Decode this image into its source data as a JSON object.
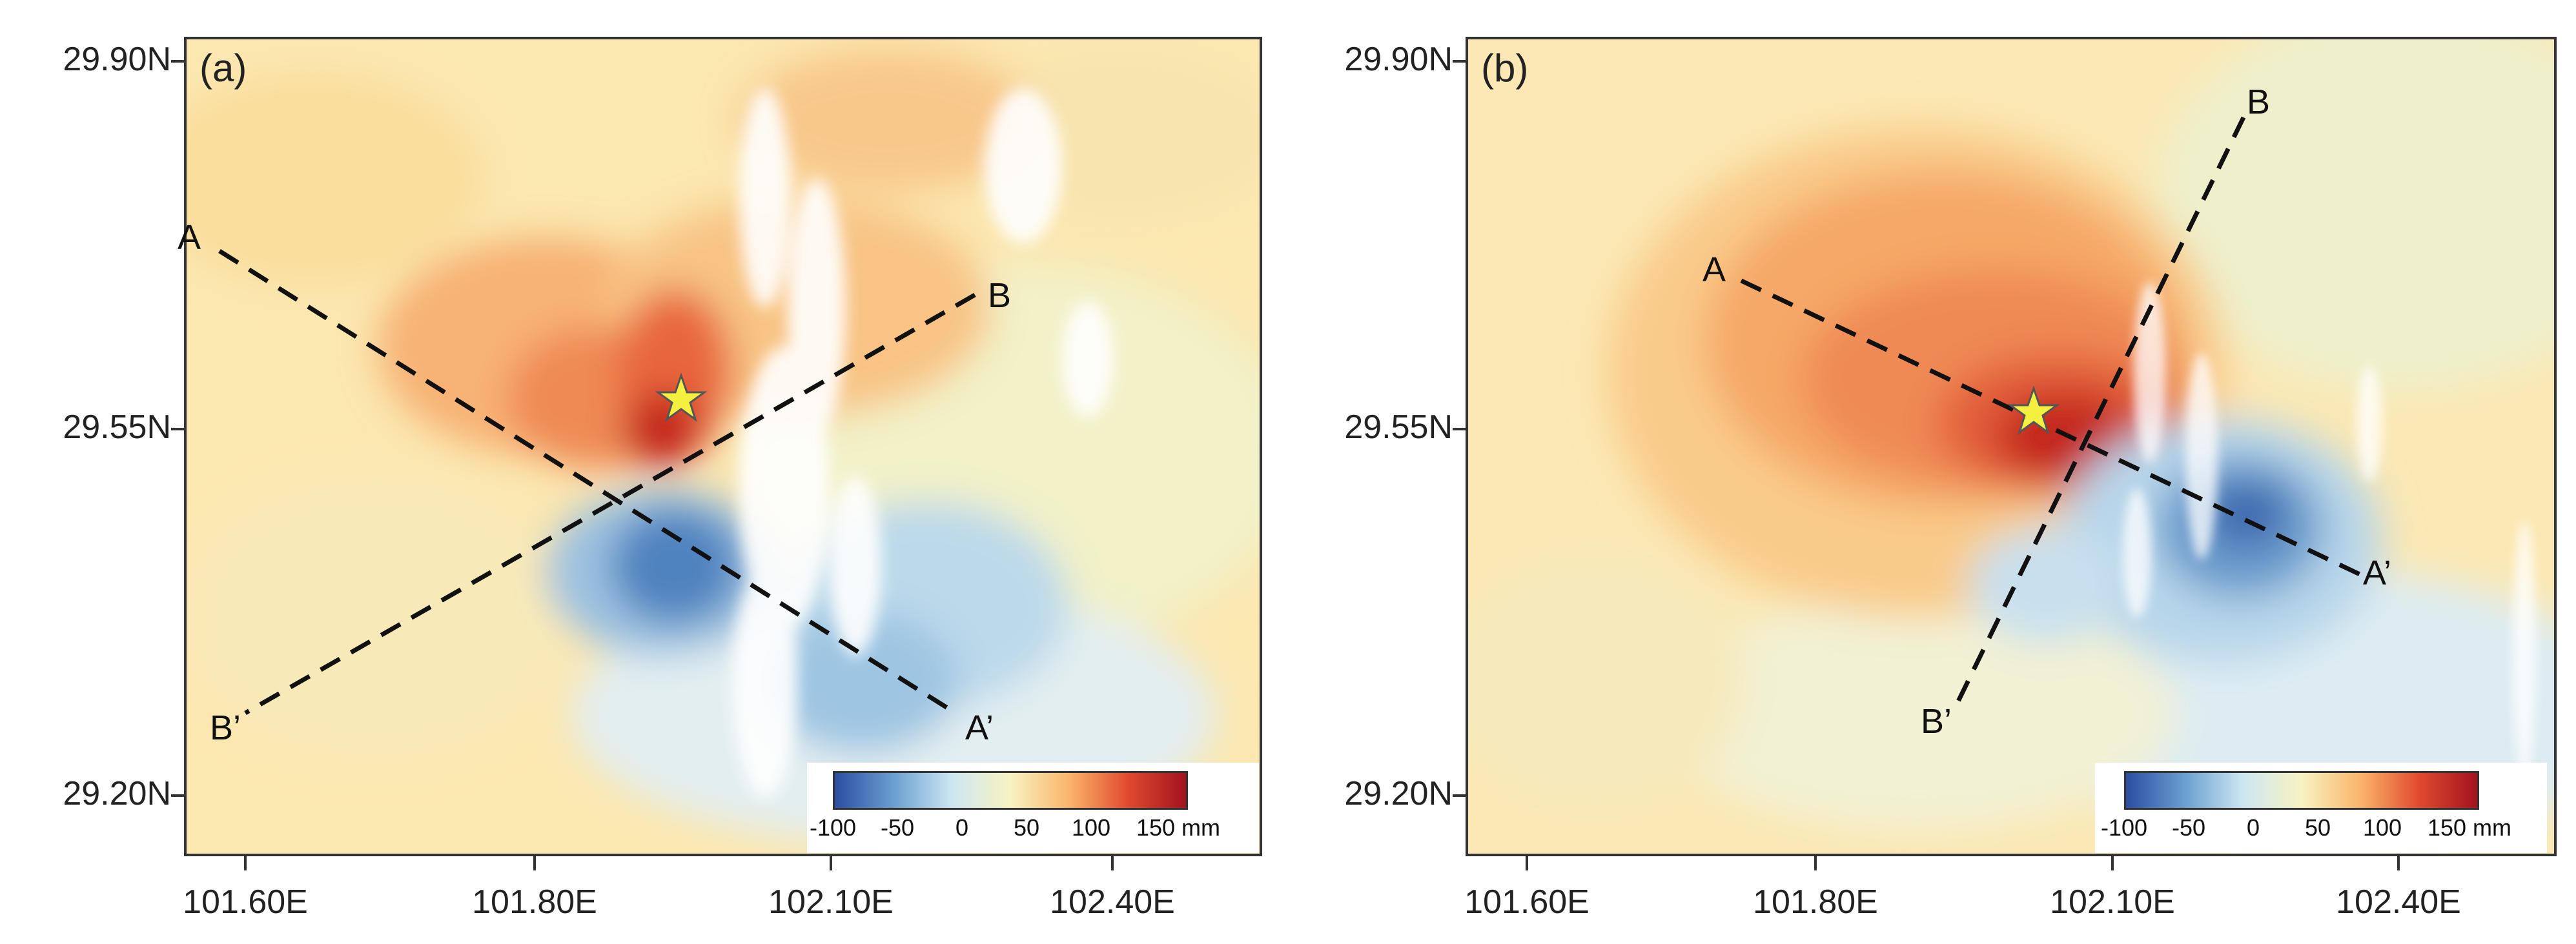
{
  "panels": [
    {
      "label": "(a)",
      "profile_labels": {
        "A": "A",
        "A_prime": "A’",
        "B": "B",
        "B_prime": "B’"
      }
    },
    {
      "label": "(b)",
      "profile_labels": {
        "A": "A",
        "A_prime": "A’",
        "B": "B",
        "B_prime": "B’"
      }
    }
  ],
  "axes": {
    "y_ticks": [
      "29.90N",
      "29.55N",
      "29.20N"
    ],
    "x_ticks": [
      "101.60E",
      "101.80E",
      "102.10E",
      "102.40E"
    ]
  },
  "colorbar": {
    "ticks": [
      "-100",
      "-50",
      "0",
      "50",
      "100",
      "150"
    ],
    "unit": "mm",
    "colors": [
      "#2b4ea0",
      "#6a9fd0",
      "#cde6f2",
      "#f7f3c2",
      "#fbb56b",
      "#e04b2f",
      "#a3121f"
    ]
  },
  "epicenter_marker_color": "#f3f040"
}
